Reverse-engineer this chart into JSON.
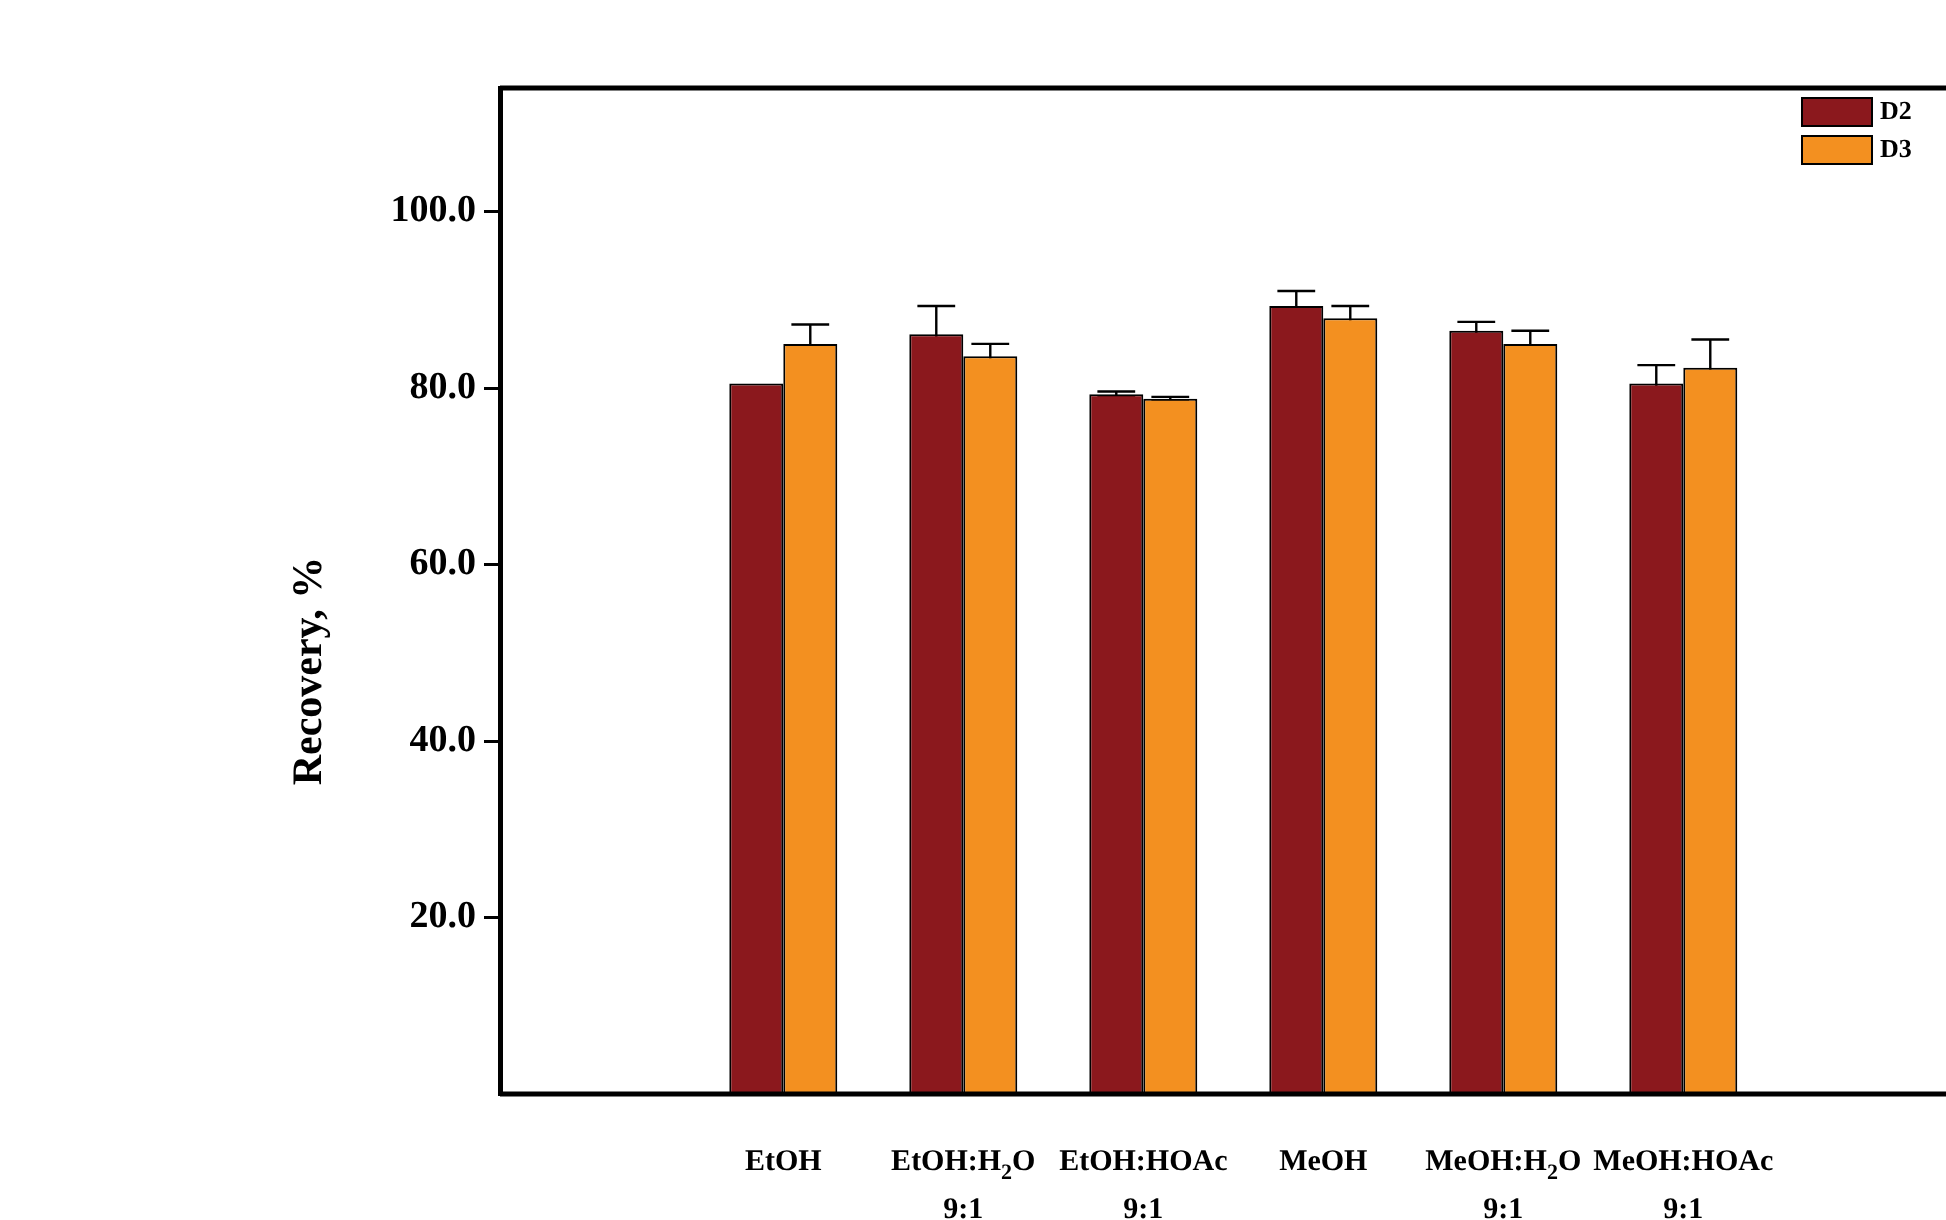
{
  "chart_data": {
    "type": "bar",
    "ylabel": "Recovery, %",
    "categories": [
      "EtOH",
      "EtOH:H$_{2}$O\n9:1",
      "EtOH:HOAc\n9:1",
      "MeOH",
      "MeOH:H$_{2}$O\n9:1",
      "MeOH:HOAc\n9:1"
    ],
    "series": [
      {
        "name": "D2",
        "color": "#8b181d",
        "values": [
          80.5,
          86.1,
          79.3,
          89.3,
          86.5,
          80.5
        ],
        "errors": [
          null,
          3.2,
          0.3,
          1.7,
          1.0,
          2.1
        ]
      },
      {
        "name": "D3",
        "color": "#f39020",
        "values": [
          85.0,
          83.6,
          78.8,
          87.9,
          85.0,
          82.3
        ],
        "errors": [
          2.2,
          1.4,
          0.2,
          1.4,
          1.5,
          3.2
        ]
      }
    ],
    "ylim": [
      0,
      114
    ],
    "yticks": [
      {
        "value": 20,
        "label": "20.0"
      },
      {
        "value": 40,
        "label": "40.0"
      },
      {
        "value": 60,
        "label": "60.0"
      },
      {
        "value": 80,
        "label": "80.0"
      },
      {
        "value": 100,
        "label": "100.0"
      }
    ],
    "legend": "top right"
  }
}
